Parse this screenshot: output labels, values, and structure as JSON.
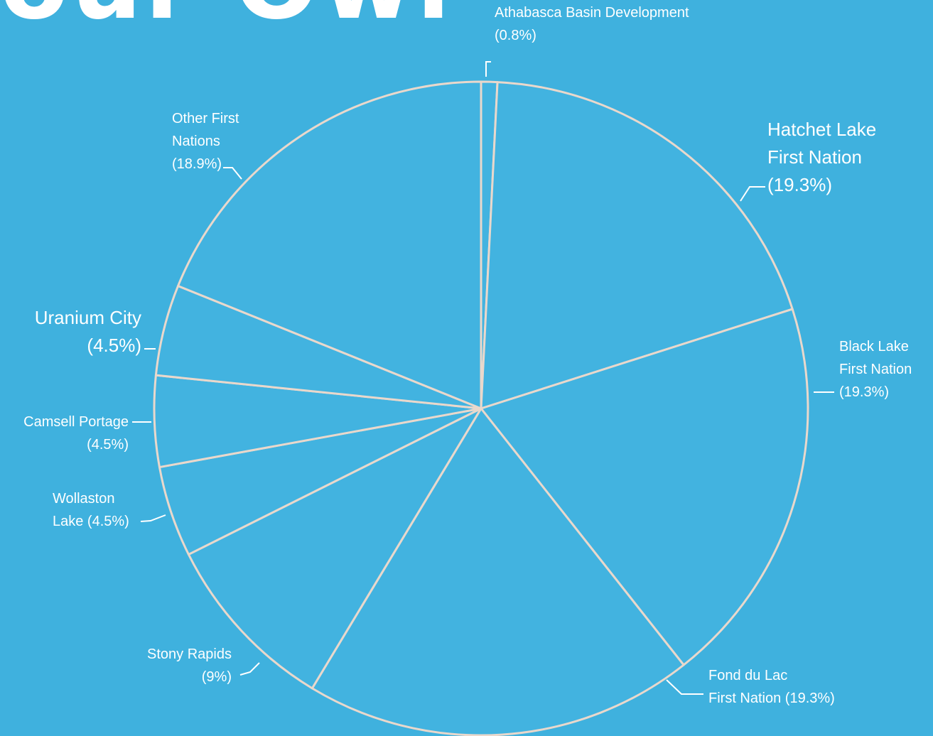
{
  "page": {
    "heading": "our Owners"
  },
  "chart_data": {
    "type": "pie",
    "title": "",
    "start_angle_deg": 0,
    "direction": "clockwise",
    "slice_fill": "#42b3e0",
    "slice_stroke": "#e9d8cc",
    "background": "#3fb1de",
    "leader_color": "#ffffff",
    "slices": [
      {
        "name": "Athabasca Basin Development",
        "percent_label": "(0.8%)",
        "value": 0.8,
        "label_lines": [
          "Athabasca Basin Development",
          "(0.8%)"
        ]
      },
      {
        "name": "Hatchet Lake First Nation",
        "percent_label": "(19.3%)",
        "value": 19.3,
        "label_lines": [
          "Hatchet Lake",
          "First Nation",
          "(19.3%)"
        ]
      },
      {
        "name": "Black Lake First Nation",
        "percent_label": "(19.3%)",
        "value": 19.3,
        "label_lines": [
          "Black Lake",
          "First Nation",
          "(19.3%)"
        ]
      },
      {
        "name": "Fond du Lac First Nation",
        "percent_label": "(19.3%)",
        "value": 19.3,
        "label_lines": [
          "Fond du Lac",
          "First Nation (19.3%)"
        ]
      },
      {
        "name": "Stony Rapids",
        "percent_label": "(9%)",
        "value": 9,
        "label_lines": [
          "Stony Rapids",
          "(9%)"
        ]
      },
      {
        "name": "Wollaston Lake",
        "percent_label": "(4.5%)",
        "value": 4.5,
        "label_lines": [
          "Wollaston",
          "Lake (4.5%)"
        ]
      },
      {
        "name": "Camsell Portage",
        "percent_label": "(4.5%)",
        "value": 4.5,
        "label_lines": [
          "Camsell Portage",
          "(4.5%)"
        ]
      },
      {
        "name": "Uranium City",
        "percent_label": "(4.5%)",
        "value": 4.5,
        "label_lines": [
          "Uranium City",
          "(4.5%)"
        ]
      },
      {
        "name": "Other First Nations",
        "percent_label": "(18.9%)",
        "value": 18.9,
        "label_lines": [
          "Other First",
          "Nations",
          "(18.9%)"
        ]
      }
    ]
  }
}
